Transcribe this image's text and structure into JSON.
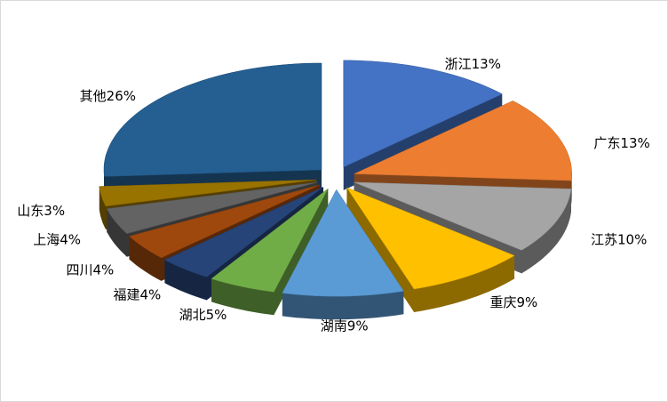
{
  "chart_data": {
    "type": "pie",
    "three_d": true,
    "exploded": true,
    "categories": [
      "浙江",
      "广东",
      "江苏",
      "重庆",
      "湖南",
      "湖北",
      "福建",
      "四川",
      "上海",
      "山东",
      "其他"
    ],
    "values": [
      13,
      13,
      10,
      9,
      9,
      5,
      4,
      4,
      4,
      3,
      26
    ],
    "value_labels": [
      "13%",
      "13%",
      "10%",
      "9%",
      "9%",
      "5%",
      "4%",
      "4%",
      "4%",
      "3%",
      "26%"
    ],
    "colors": [
      "#4472c4",
      "#ed7d31",
      "#a5a5a5",
      "#ffc000",
      "#5b9bd5",
      "#70ad47",
      "#264478",
      "#9e480e",
      "#636363",
      "#997300",
      "#255e91"
    ]
  }
}
